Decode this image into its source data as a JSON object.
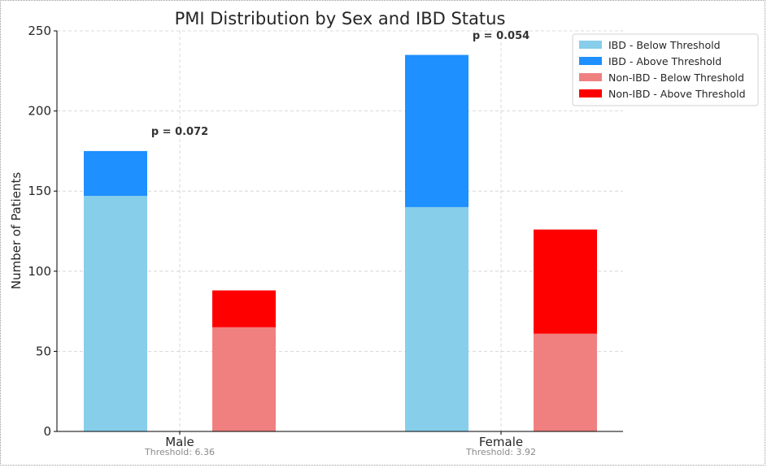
{
  "chart_data": {
    "type": "bar",
    "stacked": true,
    "title": "PMI Distribution by Sex and IBD Status",
    "xlabel": "",
    "ylabel": "Number of Patients",
    "ylim": [
      0,
      250
    ],
    "yticks": [
      0,
      50,
      100,
      150,
      200,
      250
    ],
    "grid": true,
    "legend_position": "top-right",
    "categories": [
      "Male",
      "Female"
    ],
    "category_notes": [
      "Threshold: 6.36",
      "Threshold: 3.92"
    ],
    "annotations": [
      "p = 0.072",
      "p = 0.054"
    ],
    "series": [
      {
        "name": "IBD - Below Threshold",
        "group": "IBD",
        "color": "#87CEEB",
        "values": [
          147,
          140
        ]
      },
      {
        "name": "IBD - Above Threshold",
        "group": "IBD",
        "color": "#1E90FF",
        "values": [
          28,
          95
        ]
      },
      {
        "name": "Non-IBD - Below Threshold",
        "group": "Non-IBD",
        "color": "#F08080",
        "values": [
          65,
          61
        ]
      },
      {
        "name": "Non-IBD - Above Threshold",
        "group": "Non-IBD",
        "color": "#FF0000",
        "values": [
          23,
          65
        ]
      }
    ]
  }
}
